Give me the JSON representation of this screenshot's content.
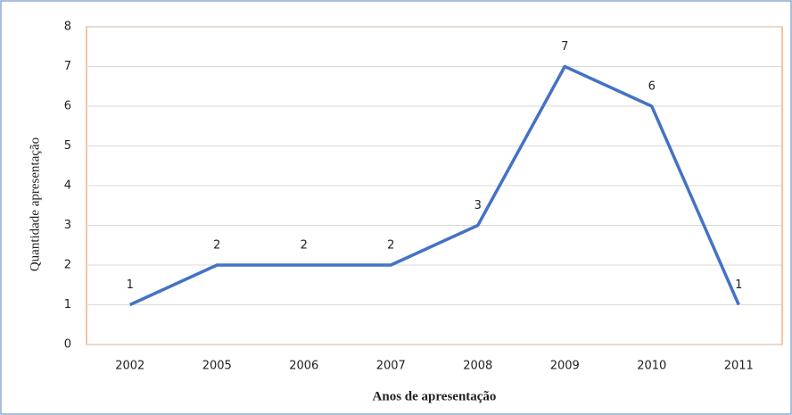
{
  "chart_data": {
    "type": "line",
    "x_label": "Anos de apresentação",
    "y_label": "Quantidade apresentação",
    "categories": [
      "2002",
      "2005",
      "2006",
      "2007",
      "2008",
      "2009",
      "2010",
      "2011"
    ],
    "values": [
      1,
      2,
      2,
      2,
      3,
      7,
      6,
      1
    ],
    "color": "#4472c4",
    "ylim": [
      0,
      8
    ],
    "yticks": [
      0,
      1,
      2,
      3,
      4,
      5,
      6,
      7,
      8
    ],
    "grid": true
  }
}
